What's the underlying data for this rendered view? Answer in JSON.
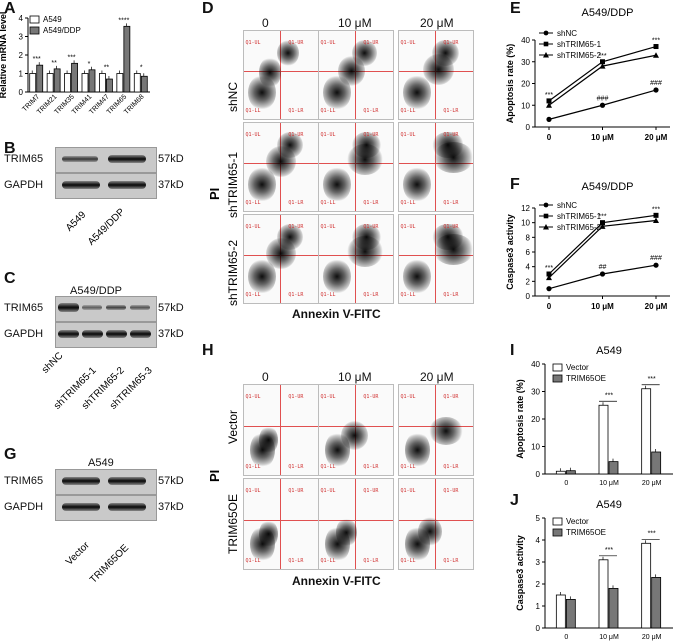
{
  "panels": {
    "A": "A",
    "B": "B",
    "C": "C",
    "D": "D",
    "E": "E",
    "F": "F",
    "G": "G",
    "H": "H",
    "I": "I",
    "J": "J"
  },
  "chart_data": [
    {
      "id": "A",
      "type": "bar",
      "ylabel": "Relative mRNA level",
      "ylim": [
        0,
        4
      ],
      "yticks": [
        "0",
        "1",
        "2",
        "3",
        "4"
      ],
      "categories": [
        "TRIM7",
        "TRIM21",
        "TRIM35",
        "TRIM41",
        "TRIM47",
        "TRIM65",
        "TRIM68"
      ],
      "series": [
        {
          "name": "A549",
          "color": "#ffffff",
          "values": [
            1.0,
            1.0,
            1.0,
            1.0,
            1.0,
            1.0,
            1.0
          ]
        },
        {
          "name": "A549/DDP",
          "color": "#777777",
          "values": [
            1.45,
            1.25,
            1.55,
            1.2,
            0.7,
            3.55,
            0.85
          ]
        }
      ],
      "annotations": [
        "***",
        "**",
        "***",
        "*",
        "**",
        "****",
        "*"
      ]
    },
    {
      "id": "E",
      "type": "line",
      "title": "A549/DDP",
      "ylabel": "Apoptosis rate (%)",
      "ylim": [
        0,
        40
      ],
      "yticks": [
        "0",
        "10",
        "20",
        "30",
        "40"
      ],
      "categories": [
        "0",
        "10 μM",
        "20 μM"
      ],
      "series": [
        {
          "name": "shNC",
          "marker": "circle",
          "values": [
            3.5,
            10,
            17
          ]
        },
        {
          "name": "shTRIM65-1",
          "marker": "square",
          "values": [
            12,
            30,
            37
          ]
        },
        {
          "name": "shTRIM65-2",
          "marker": "triangle",
          "values": [
            10,
            28,
            33
          ]
        }
      ],
      "annotations": [
        "***",
        "***",
        "***",
        "###",
        "###"
      ]
    },
    {
      "id": "F",
      "type": "line",
      "title": "A549/DDP",
      "ylabel": "Caspase3 activity",
      "ylim": [
        0,
        12
      ],
      "yticks": [
        "0",
        "2",
        "4",
        "6",
        "8",
        "10",
        "12"
      ],
      "categories": [
        "0",
        "10 μM",
        "20 μM"
      ],
      "series": [
        {
          "name": "shNC",
          "marker": "circle",
          "values": [
            1.0,
            3.0,
            4.2
          ]
        },
        {
          "name": "shTRIM65-1",
          "marker": "square",
          "values": [
            3.0,
            10.0,
            11.0
          ]
        },
        {
          "name": "shTRIM65-2",
          "marker": "triangle",
          "values": [
            2.5,
            9.5,
            10.3
          ]
        }
      ],
      "annotations": [
        "***",
        "***",
        "***",
        "##",
        "###"
      ]
    },
    {
      "id": "I",
      "type": "bar",
      "title": "A549",
      "ylabel": "Apoptosis rate (%)",
      "ylim": [
        0,
        40
      ],
      "yticks": [
        "0",
        "10",
        "20",
        "30",
        "40"
      ],
      "categories": [
        "0",
        "10 μM",
        "20 μM"
      ],
      "series": [
        {
          "name": "Vector",
          "color": "#ffffff",
          "values": [
            1.0,
            25,
            31
          ]
        },
        {
          "name": "TRIM65OE",
          "color": "#777777",
          "values": [
            1.2,
            4.5,
            8
          ]
        }
      ],
      "annotations": [
        "***",
        "***"
      ]
    },
    {
      "id": "J",
      "type": "bar",
      "title": "A549",
      "ylabel": "Caspase3 activity",
      "ylim": [
        0,
        5
      ],
      "yticks": [
        "0",
        "1",
        "2",
        "3",
        "4",
        "5"
      ],
      "categories": [
        "0",
        "10 μM",
        "20 μM"
      ],
      "series": [
        {
          "name": "Vector",
          "color": "#ffffff",
          "values": [
            1.5,
            3.1,
            3.85
          ]
        },
        {
          "name": "TRIM65OE",
          "color": "#777777",
          "values": [
            1.3,
            1.8,
            2.3
          ]
        }
      ],
      "annotations": [
        "***",
        "***"
      ]
    }
  ],
  "blotB": {
    "target": "TRIM65",
    "target_kd": "57kD",
    "control": "GAPDH",
    "control_kd": "37kD",
    "lanes": [
      "A549",
      "A549/DDP"
    ]
  },
  "blotC": {
    "title": "A549/DDP",
    "target": "TRIM65",
    "target_kd": "57kD",
    "control": "GAPDH",
    "control_kd": "37kD",
    "lanes": [
      "shNC",
      "shTRIM65-1",
      "shTRIM65-2",
      "shTRIM65-3"
    ]
  },
  "blotG": {
    "title": "A549",
    "target": "TRIM65",
    "target_kd": "57kD",
    "control": "GAPDH",
    "control_kd": "37kD",
    "lanes": [
      "Vector",
      "TRIM65OE"
    ]
  },
  "flowD": {
    "ylabel": "PI",
    "xlabel": "Annexin V-FITC",
    "conc": [
      "0",
      "10 μM",
      "20 μM"
    ],
    "rows": [
      "shNC",
      "shTRIM65-1",
      "shTRIM65-2"
    ]
  },
  "flowH": {
    "ylabel": "PI",
    "xlabel": "Annexin V-FITC",
    "conc": [
      "0",
      "10 μM",
      "20 μM"
    ],
    "rows": [
      "Vector",
      "TRIM65OE"
    ]
  },
  "flow_quadrant_labels": {
    "ul": "Q1-UL",
    "ur": "Q1-UR",
    "ll": "Q1-LL",
    "lr": "Q1-LR"
  }
}
